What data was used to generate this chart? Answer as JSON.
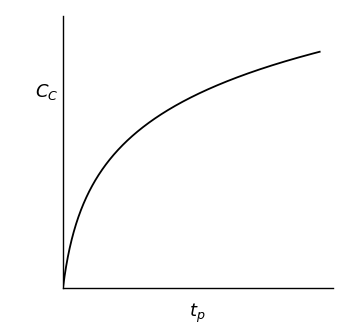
{
  "title": "",
  "xlabel": "t$_p$",
  "ylabel": "C$_C$",
  "background_color": "#ffffff",
  "line_color": "#000000",
  "axis_color": "#000000",
  "xlabel_fontsize": 13,
  "ylabel_fontsize": 13,
  "line_width": 1.3,
  "x_max": 10.0,
  "y_max": 1.0,
  "curve_power": 0.25
}
